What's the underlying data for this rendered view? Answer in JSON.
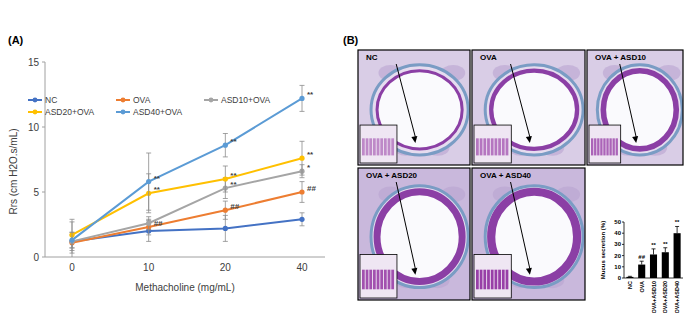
{
  "chart_data": [
    {
      "type": "line",
      "categories": [
        "0",
        "10",
        "20",
        "40"
      ],
      "x_label": "Methacholine (mg/mL)",
      "y_label": "Rrs (cm H2O.s/mL)",
      "ylim": [
        0,
        15
      ],
      "yticks": [
        0,
        5,
        10,
        15
      ],
      "legend": "top",
      "marker": "circle",
      "series": [
        {
          "name": "NC",
          "color": "#4472c4",
          "values": [
            1.2,
            2.0,
            2.2,
            2.9
          ],
          "errors": [
            1.5,
            0.8,
            1.0,
            0.5
          ],
          "annotations": [
            null,
            null,
            null,
            null
          ]
        },
        {
          "name": "OVA",
          "color": "#ed7d31",
          "values": [
            1.1,
            2.3,
            3.6,
            5.0
          ],
          "errors": [
            0.8,
            0.6,
            0.7,
            0.8
          ],
          "annotations": [
            null,
            "##",
            "##",
            "##"
          ]
        },
        {
          "name": "ASD10+OVA",
          "color": "#a5a5a5",
          "values": [
            1.2,
            2.6,
            5.3,
            6.6
          ],
          "errors": [
            0.5,
            0.5,
            0.8,
            0.5
          ],
          "annotations": [
            null,
            null,
            "**",
            "*"
          ]
        },
        {
          "name": "ASD20+OVA",
          "color": "#ffc000",
          "values": [
            1.7,
            4.9,
            6.0,
            7.6
          ],
          "errors": [
            1.2,
            1.5,
            1.0,
            1.3
          ],
          "annotations": [
            null,
            "**",
            "**",
            "**"
          ]
        },
        {
          "name": "ASD40+OVA",
          "color": "#5b9bd5",
          "values": [
            1.3,
            5.8,
            8.6,
            12.2
          ],
          "errors": [
            0.6,
            2.2,
            0.9,
            1.0
          ],
          "annotations": [
            null,
            "**",
            "**",
            "**"
          ]
        }
      ]
    },
    {
      "type": "bar",
      "categories": [
        "NC",
        "OVA",
        "OVA+ASD10",
        "OVA+ASD20",
        "OVA+ASD40"
      ],
      "values": [
        1,
        12,
        21,
        23,
        40
      ],
      "errors": [
        0.5,
        3,
        5,
        4,
        6
      ],
      "annotations": [
        null,
        "##",
        "**",
        "**",
        "**"
      ],
      "color": "#000000",
      "y_label": "Mucus secretion (%)",
      "ylim": [
        0,
        50
      ],
      "yticks": [
        0,
        10,
        20,
        30,
        40,
        50
      ]
    }
  ],
  "figure": {
    "panel_labels": [
      "(A)",
      "(B)"
    ],
    "image_titles": [
      "NC",
      "OVA",
      "OVA + ASD10",
      "OVA + ASD20",
      "OVA + ASD40"
    ]
  }
}
